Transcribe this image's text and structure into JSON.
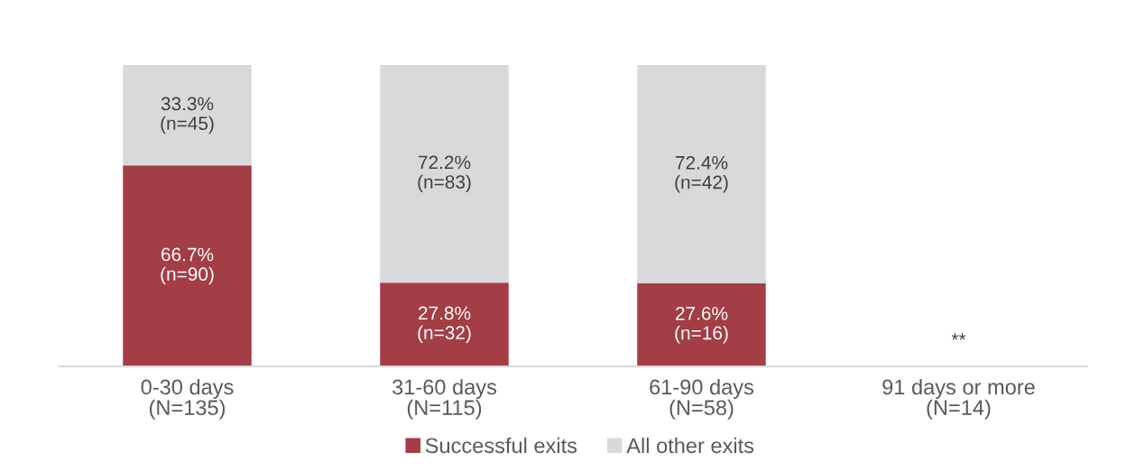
{
  "chart_data": {
    "type": "bar",
    "stacked": true,
    "categories": [
      "0-30 days\n(N=135)",
      "31-60 days\n(N=115)",
      "61-90 days\n(N=58)",
      "91 days or more\n(N=14)"
    ],
    "series": [
      {
        "name": "Successful exits",
        "color": "#a33d46",
        "values": [
          66.7,
          27.8,
          27.6,
          null
        ],
        "value_labels": [
          "66.7%\n(n=90)",
          "27.8%\n(n=32)",
          "27.6%\n(n=16)",
          null
        ]
      },
      {
        "name": "All other exits",
        "color": "#d9d9d9",
        "values": [
          33.3,
          72.2,
          72.4,
          null
        ],
        "value_labels": [
          "33.3%\n(n=45)",
          "72.2%\n(n=83)",
          "72.4%\n(n=42)",
          null
        ]
      }
    ],
    "annotations": [
      "**"
    ],
    "ylim": [
      0,
      100
    ],
    "tick_labels": "x",
    "grid": false,
    "legend": "bottom"
  }
}
